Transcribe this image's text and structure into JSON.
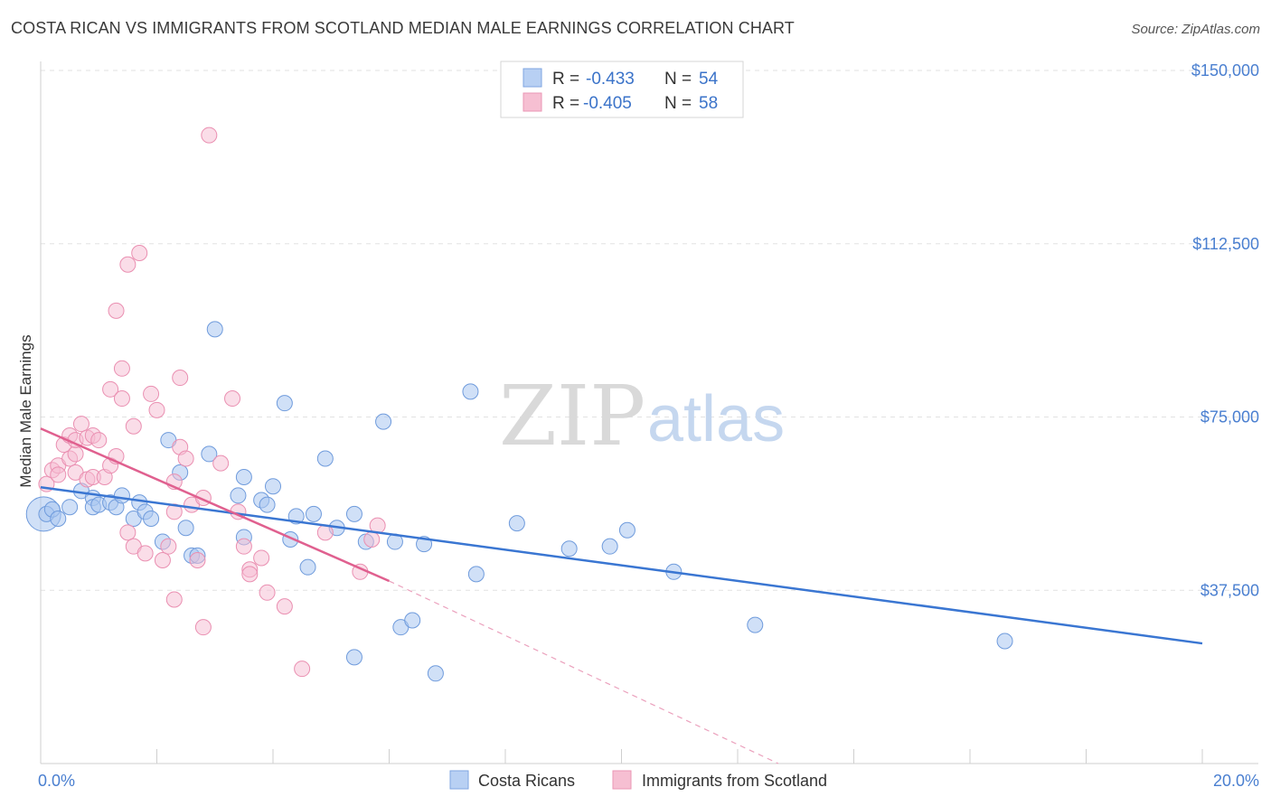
{
  "title": "COSTA RICAN VS IMMIGRANTS FROM SCOTLAND MEDIAN MALE EARNINGS CORRELATION CHART",
  "source": "Source: ZipAtlas.com",
  "watermark": {
    "zip": "ZIP",
    "atlas": "atlas"
  },
  "colors": {
    "blue": "#4a7fd0",
    "blue_fill": "#b8d0f3",
    "pink": "#e46c9a",
    "pink_fill": "#f6bfd2"
  },
  "legend": {
    "rows": [
      {
        "r_label": "R =",
        "r_value": "-0.433",
        "n_label": "N =",
        "n_value": "54"
      },
      {
        "r_label": "R =",
        "r_value": "-0.405",
        "n_label": "N =",
        "n_value": "58"
      }
    ]
  },
  "chart_data": {
    "type": "scatter",
    "title": "COSTA RICAN VS IMMIGRANTS FROM SCOTLAND MEDIAN MALE EARNINGS CORRELATION CHART",
    "xlabel": "",
    "ylabel": "Median Male Earnings",
    "xlim": [
      0,
      20
    ],
    "ylim": [
      0,
      157500
    ],
    "x_tick_labels": [
      "0.0%",
      "20.0%"
    ],
    "y_ticks": [
      37500,
      75000,
      112500,
      150000
    ],
    "y_tick_labels": [
      "$37,500",
      "$75,000",
      "$112,500",
      "$150,000"
    ],
    "series": [
      {
        "name": "Costa Ricans",
        "r": -0.433,
        "n": 54,
        "trend": {
          "x": [
            0,
            20
          ],
          "y": [
            59800,
            26000
          ]
        },
        "points": [
          [
            0.1,
            54000
          ],
          [
            0.2,
            55000
          ],
          [
            0.3,
            53000
          ],
          [
            0.5,
            55500
          ],
          [
            0.7,
            59000
          ],
          [
            0.9,
            57500
          ],
          [
            0.9,
            55500
          ],
          [
            1.0,
            56000
          ],
          [
            1.2,
            56500
          ],
          [
            1.3,
            55500
          ],
          [
            1.4,
            58000
          ],
          [
            1.6,
            53000
          ],
          [
            1.7,
            56500
          ],
          [
            1.8,
            54500
          ],
          [
            1.9,
            53000
          ],
          [
            2.1,
            48000
          ],
          [
            2.2,
            70000
          ],
          [
            2.4,
            63000
          ],
          [
            2.5,
            51000
          ],
          [
            2.6,
            45000
          ],
          [
            2.7,
            45000
          ],
          [
            2.9,
            67000
          ],
          [
            3.0,
            94000
          ],
          [
            3.4,
            58000
          ],
          [
            3.5,
            62000
          ],
          [
            3.5,
            49000
          ],
          [
            3.8,
            57000
          ],
          [
            3.9,
            56000
          ],
          [
            4.0,
            60000
          ],
          [
            4.2,
            78000
          ],
          [
            4.3,
            48500
          ],
          [
            4.4,
            53500
          ],
          [
            4.6,
            42500
          ],
          [
            4.7,
            54000
          ],
          [
            4.9,
            66000
          ],
          [
            5.1,
            51000
          ],
          [
            5.4,
            23000
          ],
          [
            5.4,
            54000
          ],
          [
            5.6,
            48000
          ],
          [
            5.9,
            74000
          ],
          [
            6.1,
            48000
          ],
          [
            6.2,
            29500
          ],
          [
            6.4,
            31000
          ],
          [
            6.6,
            47500
          ],
          [
            6.8,
            19500
          ],
          [
            7.4,
            80500
          ],
          [
            7.5,
            41000
          ],
          [
            8.2,
            52000
          ],
          [
            9.1,
            46500
          ],
          [
            9.8,
            47000
          ],
          [
            10.1,
            50500
          ],
          [
            10.9,
            41500
          ],
          [
            12.3,
            30000
          ],
          [
            16.6,
            26500
          ]
        ]
      },
      {
        "name": "Immigrants from Scotland",
        "r": -0.405,
        "n": 58,
        "trend": {
          "x": [
            0,
            6.0
          ],
          "y": [
            72500,
            39500
          ]
        },
        "trend_ext": {
          "x": [
            6.0,
            12.7
          ],
          "y": [
            39500,
            0
          ]
        },
        "points": [
          [
            0.1,
            60500
          ],
          [
            0.2,
            63500
          ],
          [
            0.3,
            64500
          ],
          [
            0.3,
            62500
          ],
          [
            0.4,
            69000
          ],
          [
            0.5,
            66000
          ],
          [
            0.5,
            71000
          ],
          [
            0.6,
            63000
          ],
          [
            0.6,
            67000
          ],
          [
            0.6,
            70000
          ],
          [
            0.7,
            73500
          ],
          [
            0.8,
            70500
          ],
          [
            0.8,
            61500
          ],
          [
            0.9,
            71000
          ],
          [
            0.9,
            62000
          ],
          [
            1.0,
            70000
          ],
          [
            1.1,
            62000
          ],
          [
            1.2,
            64500
          ],
          [
            1.2,
            81000
          ],
          [
            1.3,
            66500
          ],
          [
            1.3,
            98000
          ],
          [
            1.4,
            79000
          ],
          [
            1.4,
            85500
          ],
          [
            1.5,
            108000
          ],
          [
            1.5,
            50000
          ],
          [
            1.6,
            47000
          ],
          [
            1.6,
            73000
          ],
          [
            1.7,
            110500
          ],
          [
            1.8,
            45500
          ],
          [
            1.9,
            80000
          ],
          [
            2.0,
            76500
          ],
          [
            2.1,
            44000
          ],
          [
            2.2,
            47000
          ],
          [
            2.3,
            35500
          ],
          [
            2.3,
            54500
          ],
          [
            2.4,
            68500
          ],
          [
            2.4,
            83500
          ],
          [
            2.5,
            66000
          ],
          [
            2.6,
            56000
          ],
          [
            2.7,
            44000
          ],
          [
            2.8,
            57500
          ],
          [
            2.8,
            29500
          ],
          [
            2.9,
            136000
          ],
          [
            3.1,
            65000
          ],
          [
            3.3,
            79000
          ],
          [
            3.4,
            54500
          ],
          [
            3.5,
            47000
          ],
          [
            3.6,
            42000
          ],
          [
            3.6,
            41000
          ],
          [
            3.9,
            37000
          ],
          [
            4.2,
            34000
          ],
          [
            4.5,
            20500
          ],
          [
            4.9,
            50000
          ],
          [
            5.5,
            41500
          ],
          [
            5.7,
            48500
          ],
          [
            5.8,
            51500
          ],
          [
            2.3,
            61000
          ],
          [
            3.8,
            44500
          ]
        ]
      }
    ]
  }
}
